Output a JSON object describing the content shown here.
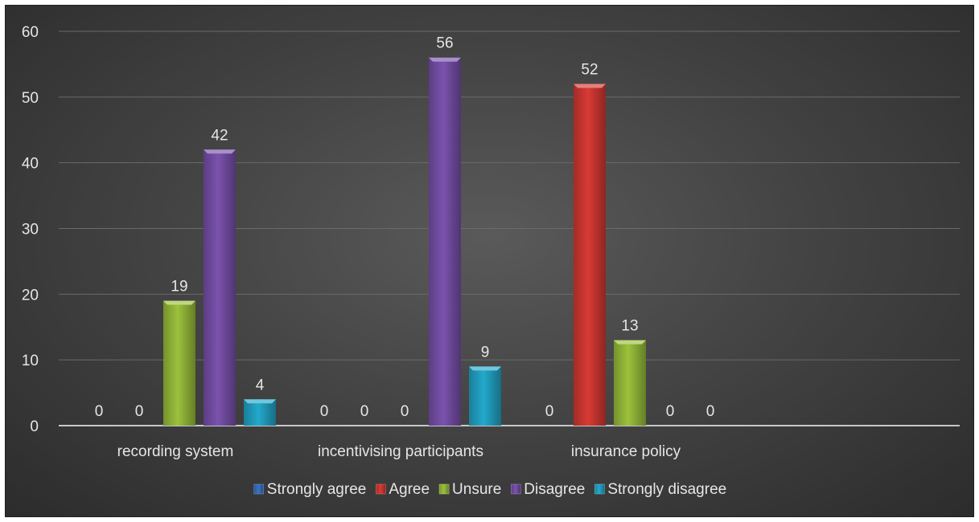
{
  "chart_data": {
    "type": "bar",
    "title": "",
    "xlabel": "",
    "ylabel": "",
    "ylim": [
      0,
      60
    ],
    "yticks": [
      0,
      10,
      20,
      30,
      40,
      50,
      60
    ],
    "grid": true,
    "legend_position": "bottom",
    "categories": [
      "recording system",
      "incentivising participants",
      "insurance policy"
    ],
    "series": [
      {
        "name": "Strongly agree",
        "color": "#3a73c4",
        "values": [
          0,
          0,
          0
        ]
      },
      {
        "name": "Agree",
        "color": "#d93a34",
        "values": [
          0,
          0,
          52
        ]
      },
      {
        "name": "Unsure",
        "color": "#9cc23c",
        "values": [
          19,
          0,
          13
        ]
      },
      {
        "name": "Disagree",
        "color": "#7b52ae",
        "values": [
          42,
          56,
          0
        ]
      },
      {
        "name": "Strongly disagree",
        "color": "#23a9cc",
        "values": [
          4,
          9,
          0
        ]
      }
    ]
  }
}
